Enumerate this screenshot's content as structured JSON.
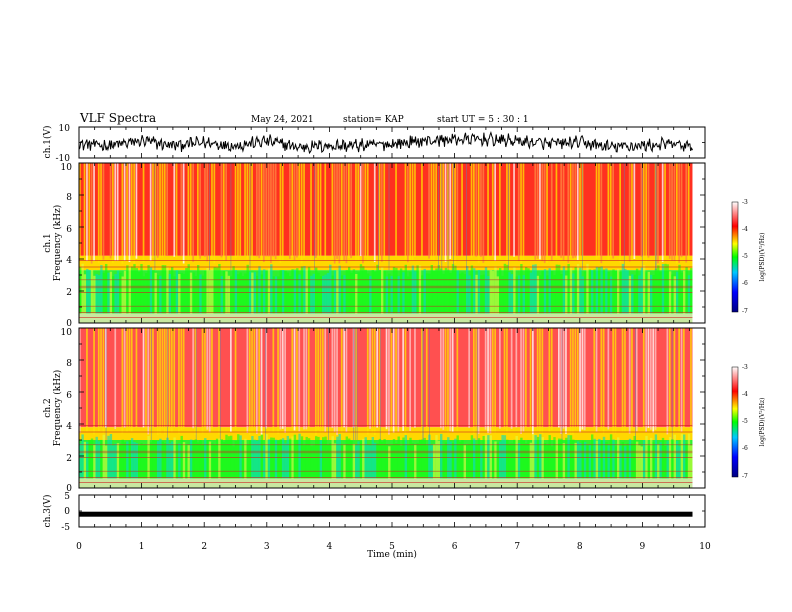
{
  "header": {
    "title": "VLF Spectra",
    "date": "May 24, 2021",
    "station": "station= KAP",
    "start": "start  UT =   5 : 30 : 1"
  },
  "colors": {
    "spectrogram_scale": [
      "#000080",
      "#0000ff",
      "#00c8ff",
      "#00ff00",
      "#ffff00",
      "#ff0000",
      "#ffffff"
    ],
    "trace": "#000000"
  },
  "chart_data": [
    {
      "type": "line",
      "name": "ch1-waveform",
      "ylabel": "ch.1(V)",
      "xlim": [
        0,
        10
      ],
      "ylim": [
        -10,
        10
      ],
      "yticks": [
        10,
        -10
      ],
      "trace_xlim": [
        0,
        9.8
      ],
      "envelope": {
        "x": [
          0,
          0.5,
          1,
          1.5,
          2,
          2.5,
          3,
          3.5,
          4,
          4.5,
          5,
          5.5,
          6,
          6.5,
          7,
          7.5,
          8,
          8.5,
          9,
          9.5,
          9.8
        ],
        "y": [
          -1,
          -2,
          1,
          -2,
          0,
          -2,
          1,
          -3,
          -2,
          -2,
          -1,
          1,
          2,
          2,
          1,
          -1,
          0,
          -3,
          -2,
          -1,
          -3
        ]
      }
    },
    {
      "type": "heatmap",
      "name": "ch1-spectrogram",
      "ylabel": "ch.1",
      "ylabel2": "Frequency  (kHz)",
      "xlim": [
        0,
        10
      ],
      "ylim": [
        0,
        10
      ],
      "yticks": [
        0,
        2,
        4,
        6,
        8,
        10
      ],
      "trace_xlim": [
        0,
        9.8
      ],
      "bands_khz": {
        "low_level_top": 3.3,
        "mid_level_top": 4.2
      },
      "colorbar": {
        "label": "log(PSD)(V²/Hz)",
        "range": [
          -7,
          -3
        ],
        "ticks": [
          -3,
          -4,
          -5,
          -6,
          -7
        ]
      }
    },
    {
      "type": "heatmap",
      "name": "ch2-spectrogram",
      "ylabel": "ch.2",
      "ylabel2": "Frequency  (kHz)",
      "xlim": [
        0,
        10
      ],
      "ylim": [
        0,
        10
      ],
      "yticks": [
        0,
        2,
        4,
        6,
        8,
        10
      ],
      "trace_xlim": [
        0,
        9.8
      ],
      "bands_khz": {
        "low_level_top": 3.0,
        "mid_level_top": 3.8
      },
      "colorbar": {
        "label": "log(PSD)(V²/Hz)",
        "range": [
          -7,
          -3
        ],
        "ticks": [
          -3,
          -4,
          -5,
          -6,
          -7
        ]
      }
    },
    {
      "type": "line",
      "name": "ch3-waveform",
      "ylabel": "ch.3(V)",
      "xlabel": "Time  (min)",
      "xlim": [
        0,
        10
      ],
      "ylim": [
        -5,
        5
      ],
      "yticks": [
        5,
        0,
        -5
      ],
      "xticks": [
        0,
        1,
        2,
        3,
        4,
        5,
        6,
        7,
        8,
        9,
        10
      ],
      "trace_xlim": [
        0,
        9.8
      ],
      "level": -1
    }
  ]
}
